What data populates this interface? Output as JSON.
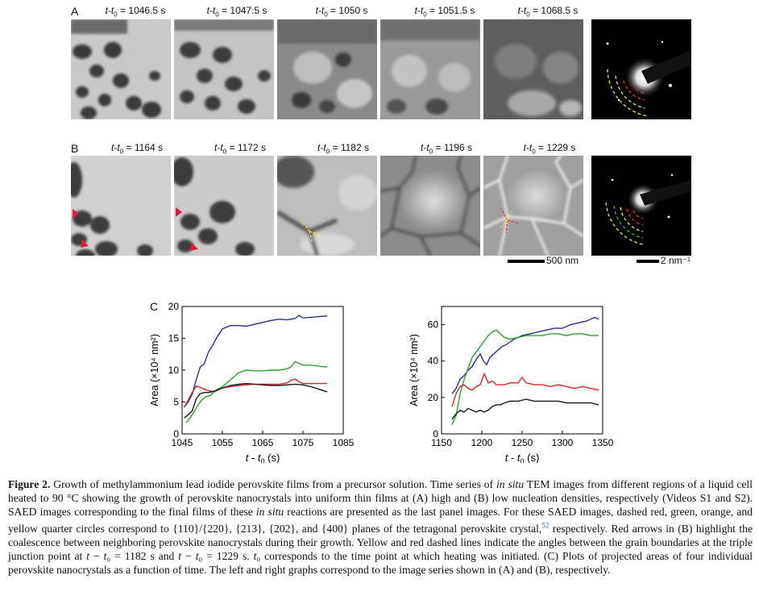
{
  "panels": {
    "A": {
      "letter": "A",
      "times": [
        "1046.5",
        "1047.5",
        "1050",
        "1051.5",
        "1068.5"
      ]
    },
    "B": {
      "letter": "B",
      "times": [
        "1164",
        "1172",
        "1182",
        "1196",
        "1229"
      ]
    },
    "C": {
      "letter": "C"
    },
    "time_prefix": "t - t",
    "time_sub": "0",
    "time_unit": "s",
    "scale_real": "500 nm",
    "scale_recip": "2 nm⁻¹"
  },
  "chart_data": [
    {
      "type": "line",
      "xlabel": "t - t0 (s)",
      "ylabel": "Area (×10⁴ nm²)",
      "xlim": [
        1045,
        1085
      ],
      "ylim": [
        0,
        20
      ],
      "xticks": [
        1045,
        1055,
        1065,
        1075,
        1085
      ],
      "yticks": [
        0,
        5,
        10,
        15,
        20
      ],
      "grid": false,
      "series": [
        {
          "color": "#2b2f8e",
          "x": [
            1045.5,
            1046.5,
            1047.5,
            1048.5,
            1049.5,
            1050.5,
            1051.5,
            1052.5,
            1053.5,
            1055,
            1057,
            1059,
            1061,
            1063,
            1065,
            1067,
            1069,
            1071,
            1073,
            1074,
            1075,
            1077,
            1079,
            1081
          ],
          "y": [
            4.2,
            5.0,
            6.2,
            8.5,
            10.5,
            11.0,
            12.8,
            13.8,
            15.0,
            16.5,
            17.0,
            17.0,
            16.9,
            17.2,
            17.5,
            17.8,
            18.0,
            17.9,
            18.1,
            18.6,
            18.2,
            18.3,
            18.4,
            18.5
          ]
        },
        {
          "color": "#2ea02e",
          "x": [
            1046,
            1047,
            1048,
            1049,
            1050,
            1051,
            1052,
            1053,
            1055,
            1057,
            1059,
            1061,
            1063,
            1065,
            1067,
            1069,
            1071,
            1072,
            1073,
            1074,
            1075,
            1077,
            1079,
            1081
          ],
          "y": [
            1.8,
            2.5,
            3.5,
            4.6,
            5.4,
            5.9,
            6.0,
            6.7,
            7.4,
            8.5,
            9.6,
            10.0,
            9.9,
            9.9,
            10.0,
            10.0,
            10.2,
            10.5,
            11.3,
            11.1,
            10.8,
            10.8,
            10.6,
            10.5
          ]
        },
        {
          "color": "#d62728",
          "x": [
            1045.5,
            1046.5,
            1047.5,
            1048.5,
            1049.5,
            1050.5,
            1051.5,
            1053,
            1055,
            1057,
            1059,
            1061,
            1063,
            1065,
            1067,
            1069,
            1071,
            1072,
            1073,
            1074,
            1075,
            1077,
            1079,
            1081
          ],
          "y": [
            4.2,
            5.3,
            6.5,
            7.5,
            7.3,
            7.0,
            6.8,
            6.6,
            7.2,
            7.4,
            7.6,
            7.7,
            7.8,
            7.8,
            7.8,
            7.8,
            8.0,
            8.4,
            8.6,
            8.2,
            7.9,
            7.9,
            7.9,
            7.9
          ]
        },
        {
          "color": "#1a1a1a",
          "x": [
            1045.5,
            1046.5,
            1047.5,
            1048.5,
            1049.5,
            1050.5,
            1051.5,
            1053,
            1055,
            1057,
            1059,
            1061,
            1063,
            1065,
            1067,
            1069,
            1071,
            1073,
            1075,
            1077,
            1079,
            1081
          ],
          "y": [
            2.5,
            3.0,
            3.6,
            5.5,
            6.3,
            6.5,
            6.5,
            6.7,
            7.2,
            7.6,
            7.8,
            7.9,
            7.8,
            7.7,
            7.6,
            7.6,
            7.7,
            7.8,
            7.7,
            7.4,
            7.0,
            6.6
          ]
        }
      ]
    },
    {
      "type": "line",
      "xlabel": "t - t0 (s)",
      "ylabel": "Area (×10⁴ nm²)",
      "xlim": [
        1150,
        1350
      ],
      "ylim": [
        0,
        70
      ],
      "xticks": [
        1150,
        1200,
        1250,
        1300,
        1350
      ],
      "yticks": [
        0,
        20,
        40,
        60
      ],
      "grid": false,
      "series": [
        {
          "color": "#2b2f8e",
          "x": [
            1163,
            1168,
            1173,
            1178,
            1183,
            1188,
            1193,
            1198,
            1202,
            1206,
            1210,
            1215,
            1220,
            1225,
            1230,
            1240,
            1250,
            1260,
            1270,
            1280,
            1290,
            1300,
            1310,
            1320,
            1330,
            1340,
            1345
          ],
          "y": [
            22,
            25,
            30,
            32,
            35,
            37,
            41,
            44,
            40,
            38,
            42,
            44,
            46,
            48,
            49,
            52,
            54,
            55,
            56,
            57,
            58,
            58,
            60,
            61,
            62,
            64,
            63
          ]
        },
        {
          "color": "#2ea02e",
          "x": [
            1163,
            1168,
            1173,
            1178,
            1183,
            1188,
            1193,
            1198,
            1203,
            1208,
            1213,
            1218,
            1223,
            1228,
            1235,
            1245,
            1255,
            1265,
            1275,
            1285,
            1295,
            1305,
            1315,
            1325,
            1335,
            1345
          ],
          "y": [
            5,
            10,
            22,
            30,
            36,
            42,
            45,
            48,
            51,
            54,
            56,
            57,
            55,
            53,
            52,
            53,
            54,
            54,
            54,
            55,
            55,
            54,
            55,
            55,
            54,
            54
          ]
        },
        {
          "color": "#d62728",
          "x": [
            1163,
            1168,
            1173,
            1178,
            1183,
            1188,
            1193,
            1198,
            1203,
            1208,
            1213,
            1218,
            1223,
            1228,
            1235,
            1245,
            1250,
            1255,
            1265,
            1275,
            1285,
            1295,
            1305,
            1315,
            1325,
            1335,
            1345
          ],
          "y": [
            15,
            22,
            26,
            27,
            25,
            24,
            26,
            27,
            33,
            28,
            29,
            27,
            27,
            27,
            28,
            28,
            31,
            28,
            27,
            27,
            26,
            27,
            26,
            25,
            26,
            25,
            24
          ]
        },
        {
          "color": "#1a1a1a",
          "x": [
            1163,
            1168,
            1173,
            1178,
            1183,
            1188,
            1193,
            1198,
            1203,
            1208,
            1213,
            1218,
            1223,
            1228,
            1235,
            1245,
            1255,
            1265,
            1275,
            1285,
            1295,
            1305,
            1315,
            1325,
            1335,
            1345
          ],
          "y": [
            8,
            11,
            13,
            12,
            14,
            13,
            12,
            13,
            12,
            13,
            15,
            16,
            16,
            17,
            18,
            18,
            19,
            18,
            18,
            18,
            18,
            17,
            17,
            17,
            17,
            16
          ]
        }
      ]
    }
  ],
  "caption": {
    "label": "Figure 2.",
    "segments": [
      {
        "t": " Growth of methylammonium lead iodide perovskite films from a precursor solution. Time series of "
      },
      {
        "t": "in situ",
        "i": true
      },
      {
        "t": " TEM images from different regions of a liquid cell heated to 90 °C showing the growth of perovskite nanocrystals into uniform thin films at (A) high and (B) low nucleation densities, respectively (Videos S1 and S2). SAED images corresponding to the final films of these "
      },
      {
        "t": "in situ",
        "i": true
      },
      {
        "t": " reactions are presented as the last panel images. For these SAED images, dashed red, green, orange, and yellow quarter circles correspond to {110}/{220}, {213}, {202}, and {400} planes of the tetragonal perovskite crystal,"
      },
      {
        "t": "52",
        "ref": true
      },
      {
        "t": " respectively. Red arrows in (B) highlight the coalescence between neighboring perovskite nanocrystals during their growth. Yellow and red dashed lines indicate the angles between the grain boundaries at the triple junction point at "
      },
      {
        "t": "t",
        "i": true
      },
      {
        "t": " − "
      },
      {
        "t": "t",
        "i": true
      },
      {
        "t": "₀ = 1182 s and "
      },
      {
        "t": "t",
        "i": true
      },
      {
        "t": " − "
      },
      {
        "t": "t",
        "i": true
      },
      {
        "t": "₀ = 1229 s. "
      },
      {
        "t": "t",
        "i": true
      },
      {
        "t": "₀ corresponds to the time point at which heating was initiated. (C) Plots of projected areas of four individual perovskite nanocrystals as a function of time. The left and right graphs correspond to the image series shown in (A) and (B), respectively."
      }
    ]
  }
}
